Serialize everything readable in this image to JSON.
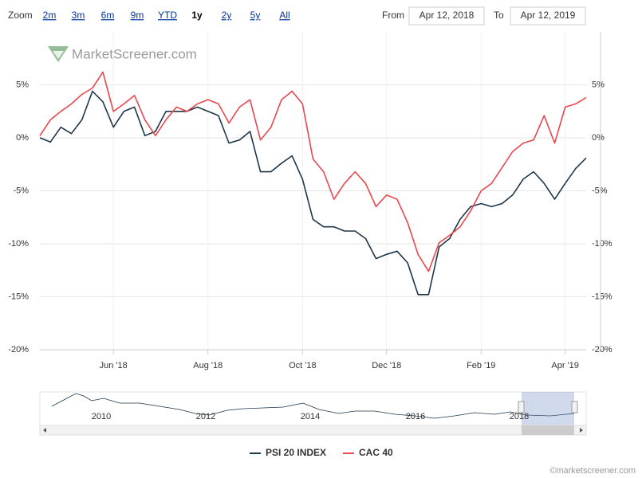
{
  "range_selector": {
    "zoom_label": "Zoom",
    "buttons": [
      "2m",
      "3m",
      "6m",
      "9m",
      "YTD",
      "1y",
      "2y",
      "5y",
      "All"
    ],
    "selected": "1y",
    "from_label": "From",
    "from": "Apr 12, 2018",
    "to_label": "To",
    "to": "Apr 12, 2019"
  },
  "watermark": "MarketScreener.com",
  "credit": "©marketscreener.com",
  "navigator": {
    "labels": [
      "2010",
      "2012",
      "2014",
      "2016",
      "2018"
    ]
  },
  "chart_data": {
    "type": "line",
    "categories": [
      null,
      null,
      null,
      null,
      null,
      null,
      null,
      "Jun '18",
      null,
      null,
      null,
      null,
      null,
      null,
      null,
      null,
      "Aug '18",
      null,
      null,
      null,
      null,
      null,
      null,
      null,
      null,
      "Oct '18",
      null,
      null,
      null,
      null,
      null,
      null,
      null,
      "Dec '18",
      null,
      null,
      null,
      null,
      null,
      null,
      null,
      null,
      "Feb '19",
      null,
      null,
      null,
      null,
      null,
      null,
      null,
      "Apr '19",
      null,
      null
    ],
    "series": [
      {
        "name": "PSI 20 INDEX",
        "color": "#1d3649",
        "values": [
          0,
          -0.4,
          1,
          0.4,
          1.7,
          4.4,
          3.4,
          1,
          2.5,
          2.9,
          0.2,
          0.6,
          2.5,
          2.5,
          2.5,
          2.9,
          2.5,
          2.1,
          -0.5,
          -0.2,
          0.6,
          -3.2,
          -3.2,
          -2.4,
          -1.7,
          -3.9,
          -7.7,
          -8.4,
          -8.4,
          -8.8,
          -8.8,
          -9.5,
          -11.4,
          -11,
          -10.7,
          -11.8,
          -14.8,
          -14.8,
          -10.3,
          -9.5,
          -7.7,
          -6.5,
          -6.2,
          -6.5,
          -6.2,
          -5.4,
          -3.9,
          -3.2,
          -4.3,
          -5.8,
          -4.3,
          -2.9,
          -1.9
        ]
      },
      {
        "name": "CAC 40",
        "color": "#e8474c",
        "values": [
          0.2,
          1.7,
          2.5,
          3.2,
          4.1,
          4.7,
          6.2,
          2.5,
          3.2,
          4,
          1.7,
          0.2,
          1.7,
          2.9,
          2.5,
          3.2,
          3.6,
          3.2,
          1.4,
          2.9,
          3.6,
          -0.2,
          1,
          3.6,
          4.4,
          3.2,
          -2,
          -3.2,
          -5.8,
          -4.3,
          -3.2,
          -4.3,
          -6.5,
          -5.4,
          -5.8,
          -8,
          -11,
          -12.6,
          -9.9,
          -9.2,
          -8.4,
          -6.9,
          -5,
          -4.3,
          -2.8,
          -1.3,
          -0.5,
          -0.2,
          2.1,
          -0.5,
          2.9,
          3.2,
          3.8
        ]
      }
    ],
    "ylim": [
      -20,
      10
    ],
    "yticks": [
      {
        "value": -20,
        "label": "-20%"
      },
      {
        "value": -15,
        "label": "-15%"
      },
      {
        "value": -10,
        "label": "-10%"
      },
      {
        "value": -5,
        "label": "-5%"
      },
      {
        "value": 0,
        "label": "0%"
      },
      {
        "value": 5,
        "label": "5%"
      }
    ],
    "y2lim": [
      -20,
      10
    ],
    "y2ticks": [
      {
        "value": -20,
        "label": "-20%"
      },
      {
        "value": -15,
        "label": "-15%"
      },
      {
        "value": -10,
        "label": "-10%"
      },
      {
        "value": -5,
        "label": "-5%"
      },
      {
        "value": 0,
        "label": "0%"
      },
      {
        "value": 5,
        "label": "5%"
      }
    ],
    "grid": true
  }
}
